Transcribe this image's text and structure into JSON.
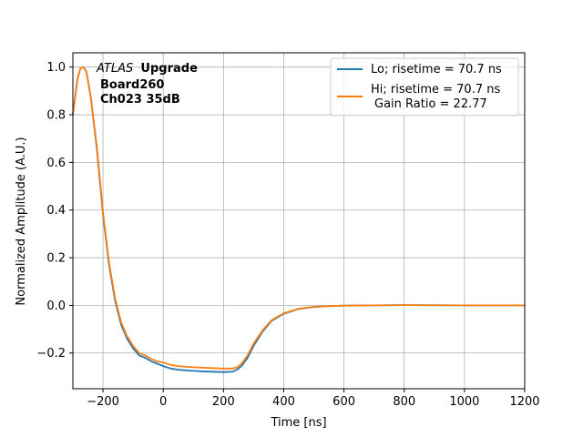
{
  "chart_data": {
    "type": "line",
    "xlabel": "Time [ns]",
    "ylabel": "Normalized Amplitude (A.U.)",
    "xlim": [
      -300,
      1200
    ],
    "ylim": [
      -0.35,
      1.06
    ],
    "xticks": [
      -200,
      0,
      200,
      400,
      600,
      800,
      1000,
      1200
    ],
    "xtick_labels": [
      "−200",
      "0",
      "200",
      "400",
      "600",
      "800",
      "1000",
      "1200"
    ],
    "yticks": [
      -0.2,
      0.0,
      0.2,
      0.4,
      0.6,
      0.8,
      1.0
    ],
    "ytick_labels": [
      "−0.2",
      "0.0",
      "0.2",
      "0.4",
      "0.6",
      "0.8",
      "1.0"
    ],
    "grid": true,
    "legend_position": "top-right",
    "annotation": {
      "experiment": "ATLAS",
      "line1_rest": "Upgrade",
      "line2": "Board260",
      "line3": "Ch023 35dB"
    },
    "series": [
      {
        "name": "Lo; risetime = 70.7 ns",
        "color": "#1f77b4",
        "x": [
          -300,
          -285,
          -275,
          -265,
          -255,
          -240,
          -220,
          -200,
          -180,
          -160,
          -140,
          -120,
          -100,
          -80,
          -60,
          -40,
          -20,
          0,
          25,
          50,
          100,
          150,
          200,
          230,
          245,
          260,
          280,
          300,
          330,
          360,
          400,
          450,
          500,
          550,
          600,
          700,
          800,
          1000,
          1200
        ],
        "values": [
          0.8,
          0.95,
          0.995,
          1.0,
          0.98,
          0.87,
          0.65,
          0.38,
          0.17,
          0.02,
          -0.08,
          -0.14,
          -0.18,
          -0.21,
          -0.22,
          -0.235,
          -0.245,
          -0.255,
          -0.265,
          -0.27,
          -0.275,
          -0.278,
          -0.28,
          -0.278,
          -0.27,
          -0.255,
          -0.22,
          -0.17,
          -0.11,
          -0.065,
          -0.035,
          -0.015,
          -0.007,
          -0.003,
          -0.001,
          0.0,
          0.001,
          0.0,
          0.0
        ]
      },
      {
        "name": "Hi; risetime = 70.7 ns",
        "name_line2": "Gain Ratio = 22.77",
        "color": "#ff7f0e",
        "x": [
          -300,
          -285,
          -275,
          -265,
          -255,
          -240,
          -220,
          -200,
          -180,
          -160,
          -140,
          -120,
          -100,
          -80,
          -60,
          -40,
          -20,
          0,
          25,
          50,
          100,
          150,
          200,
          230,
          245,
          260,
          280,
          300,
          330,
          360,
          400,
          450,
          500,
          550,
          600,
          700,
          800,
          1000,
          1200
        ],
        "values": [
          0.8,
          0.95,
          0.995,
          1.0,
          0.98,
          0.87,
          0.66,
          0.39,
          0.18,
          0.03,
          -0.07,
          -0.13,
          -0.17,
          -0.2,
          -0.21,
          -0.225,
          -0.235,
          -0.24,
          -0.25,
          -0.255,
          -0.26,
          -0.263,
          -0.265,
          -0.265,
          -0.26,
          -0.245,
          -0.21,
          -0.16,
          -0.105,
          -0.062,
          -0.033,
          -0.014,
          -0.006,
          -0.003,
          -0.001,
          0.0,
          0.001,
          0.0,
          0.0
        ]
      }
    ]
  }
}
